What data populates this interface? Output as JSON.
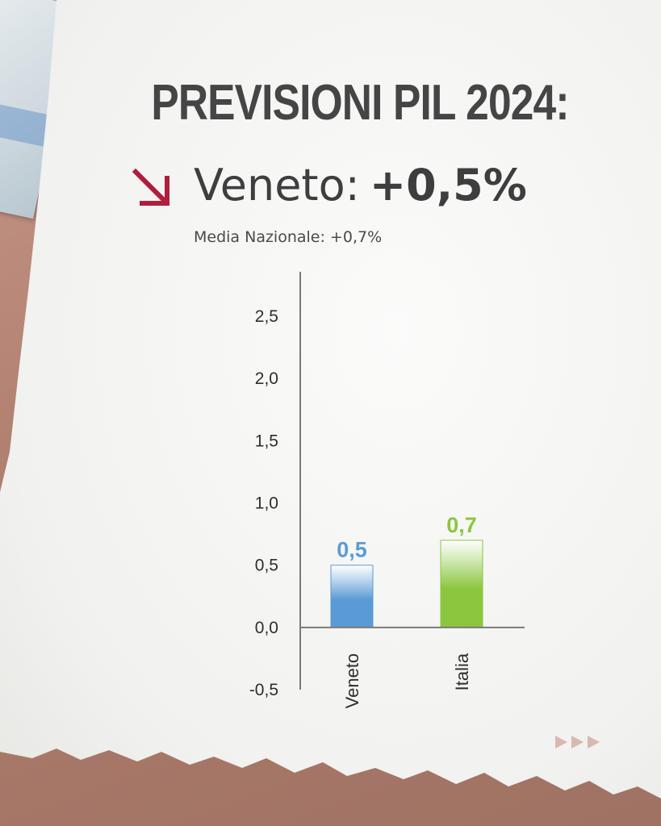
{
  "header": {
    "title": "PREVISIONI PIL 2024:",
    "region": "Veneto:",
    "region_value": "+0,5%",
    "subtitle": "Media Nazionale: +0,7%",
    "trend_icon": "arrow-down-right-icon",
    "trend_color": "#b01e3c"
  },
  "chart_data": {
    "type": "bar",
    "categories": [
      "Veneto",
      "Italia"
    ],
    "values": [
      0.5,
      0.7
    ],
    "data_labels": [
      "0,5",
      "0,7"
    ],
    "colors": [
      "#5b9bd5",
      "#8cc63f"
    ],
    "ylim": [
      -0.5,
      2.5
    ],
    "yticks": [
      2.5,
      2.0,
      1.5,
      1.0,
      0.5,
      0.0,
      -0.5
    ],
    "ytick_labels": [
      "2,5",
      "2,0",
      "1,5",
      "1,0",
      "0,5",
      "0,0",
      "-0,5"
    ],
    "grid": false,
    "legend": "none"
  },
  "footer": {
    "next_icon": "triple-chevron-right-icon"
  }
}
